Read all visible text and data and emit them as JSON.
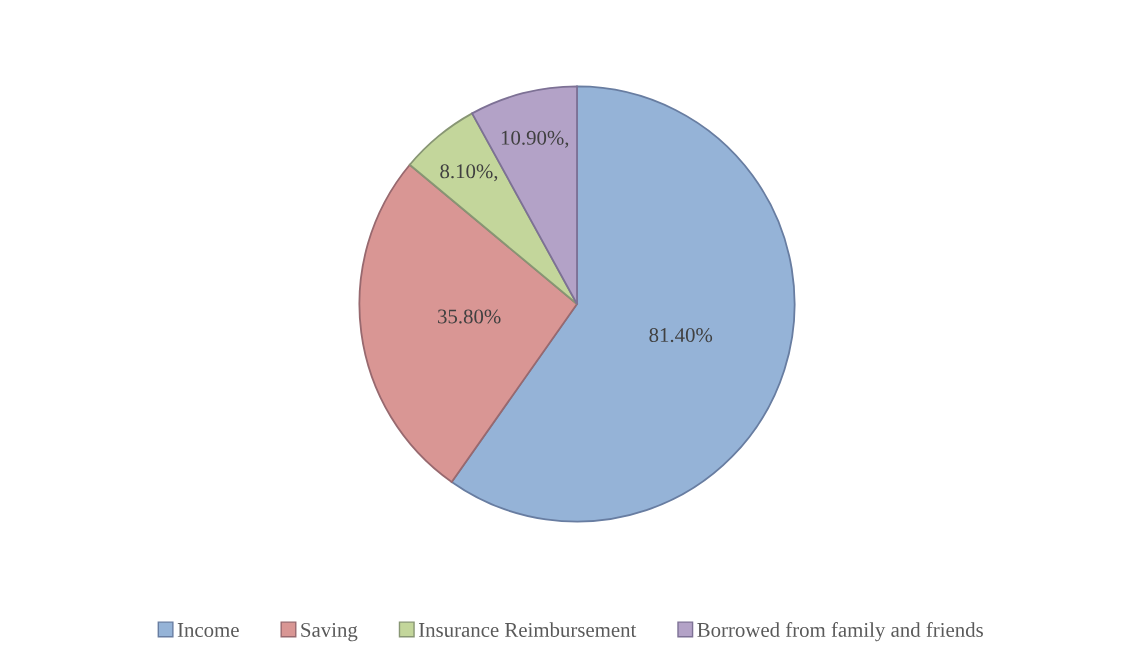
{
  "chart_data": {
    "type": "pie",
    "categories": [
      "Income",
      "Saving",
      "Insurance Reimbursement",
      "Borrowed from family and friends"
    ],
    "values": [
      81.4,
      35.8,
      8.1,
      10.9
    ],
    "value_labels": [
      "81.40%",
      "35.80%",
      "8.10%,",
      "10.90%,"
    ],
    "colors": [
      "#95b3d7",
      "#d99694",
      "#c3d69b",
      "#b3a2c7"
    ],
    "legend": "bottom"
  }
}
